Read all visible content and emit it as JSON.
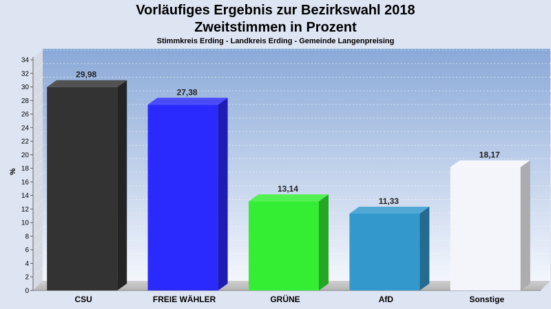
{
  "chart_data": {
    "type": "bar",
    "title": "Vorläufiges Ergebnis zur Bezirkswahl 2018",
    "subtitle_line2": "Zweitstimmen in Prozent",
    "caption": "Stimmkreis Erding - Landkreis Erding - Gemeinde Langenpreising",
    "ylabel": "%",
    "xlabel": "",
    "ylim": [
      0,
      34
    ],
    "ytick_step": 2,
    "grid": true,
    "categories": [
      "CSU",
      "FREIE WÄHLER",
      "GRÜNE",
      "AfD",
      "Sonstige"
    ],
    "values": [
      29.98,
      27.38,
      13.14,
      11.33,
      18.17
    ],
    "value_labels": [
      "29,98",
      "27,38",
      "13,14",
      "11,33",
      "18,17"
    ],
    "colors": [
      "#333333",
      "#2a2aff",
      "#33ee33",
      "#3399cc",
      "#f4f4fb"
    ]
  }
}
